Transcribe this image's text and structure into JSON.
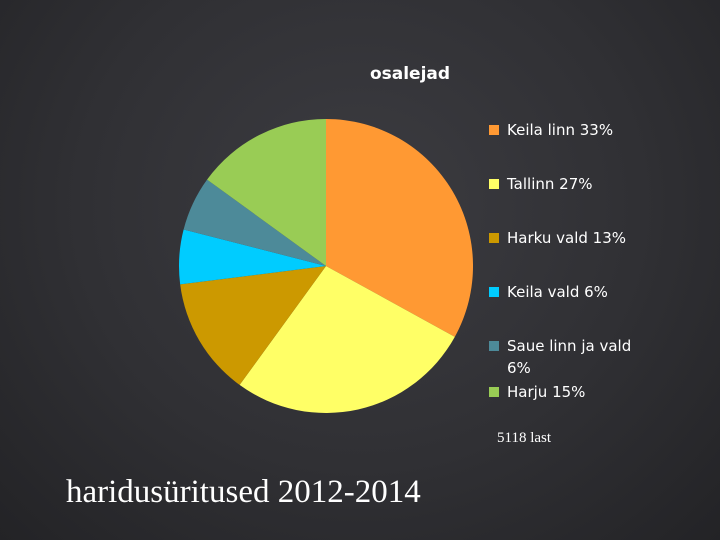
{
  "slide": {
    "title": "haridusüritused 2012-2014",
    "note": "5118 last"
  },
  "chart_data": {
    "type": "pie",
    "title": "osalejad",
    "slices": [
      {
        "label": "Keila linn 33%",
        "value": 33,
        "color": "#ff9933"
      },
      {
        "label": "Tallinn 27%",
        "value": 27,
        "color": "#ffff66"
      },
      {
        "label": "Harku vald 13%",
        "value": 13,
        "color": "#cc9900"
      },
      {
        "label": "Keila vald 6%",
        "value": 6,
        "color": "#00ccff"
      },
      {
        "label": "Saue linn ja vald 6%",
        "value": 6,
        "color": "#4d8a99"
      },
      {
        "label": "Harju 15%",
        "value": 15,
        "color": "#99cc55"
      }
    ],
    "legend": "right"
  }
}
